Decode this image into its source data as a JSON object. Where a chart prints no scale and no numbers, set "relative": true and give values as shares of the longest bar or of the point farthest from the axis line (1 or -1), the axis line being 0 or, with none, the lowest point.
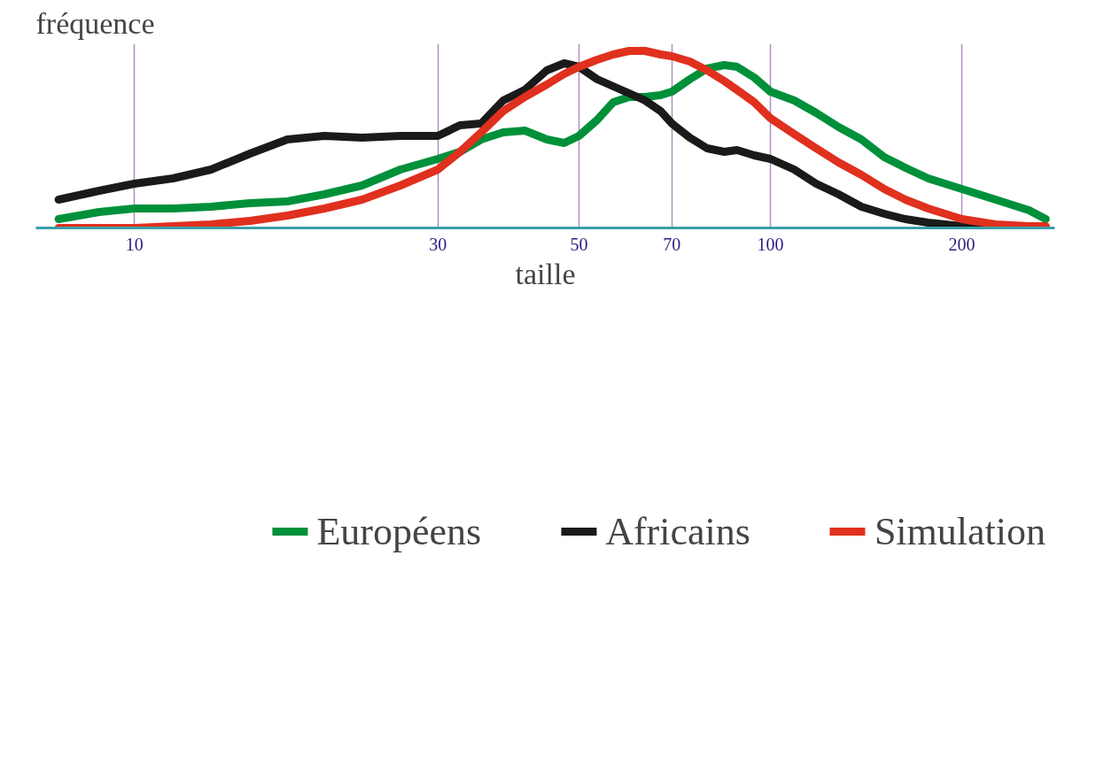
{
  "chart_data": {
    "type": "line",
    "relative": true,
    "xlabel": "taille",
    "ylabel": "fréquence",
    "log": "x",
    "grid": "x",
    "legend": "bottom",
    "marker": "none",
    "line_style": "solid",
    "x": [
      7.6,
      8.8,
      10,
      11.5,
      13.2,
      15.2,
      17.4,
      19.9,
      22.8,
      26.2,
      30,
      32.5,
      35.1,
      38,
      41.1,
      44.5,
      47.4,
      50,
      53.4,
      56.6,
      60,
      63.5,
      67.2,
      70,
      74.7,
      79.5,
      84.6,
      88.6,
      94.3,
      100,
      109,
      118,
      128,
      139,
      151,
      163,
      177,
      200,
      226,
      255,
      271
    ],
    "xlim": [
      7,
      280
    ],
    "xticks": [
      10,
      30,
      50,
      70,
      100,
      200
    ],
    "series": [
      {
        "name": "Européens",
        "color": "#00903a",
        "values": [
          0.05,
          0.09,
          0.11,
          0.11,
          0.12,
          0.14,
          0.15,
          0.19,
          0.24,
          0.33,
          0.39,
          0.43,
          0.5,
          0.54,
          0.55,
          0.5,
          0.48,
          0.52,
          0.61,
          0.71,
          0.74,
          0.74,
          0.75,
          0.77,
          0.84,
          0.9,
          0.92,
          0.91,
          0.85,
          0.77,
          0.72,
          0.65,
          0.57,
          0.5,
          0.4,
          0.34,
          0.28,
          0.22,
          0.16,
          0.1,
          0.05
        ]
      },
      {
        "name": "Africains",
        "color": "#1a1a1a",
        "values": [
          0.16,
          0.21,
          0.25,
          0.28,
          0.33,
          0.42,
          0.5,
          0.52,
          0.51,
          0.52,
          0.52,
          0.58,
          0.59,
          0.72,
          0.78,
          0.89,
          0.93,
          0.91,
          0.84,
          0.8,
          0.76,
          0.72,
          0.66,
          0.59,
          0.51,
          0.45,
          0.43,
          0.44,
          0.41,
          0.39,
          0.33,
          0.25,
          0.19,
          0.12,
          0.08,
          0.05,
          0.03,
          0.01,
          0,
          0,
          0
        ]
      },
      {
        "name": "Simulation",
        "color": "#e0301e",
        "values": [
          0,
          0,
          0,
          0.01,
          0.02,
          0.04,
          0.07,
          0.11,
          0.16,
          0.24,
          0.33,
          0.43,
          0.54,
          0.66,
          0.74,
          0.81,
          0.87,
          0.91,
          0.95,
          0.98,
          1,
          1,
          0.98,
          0.97,
          0.94,
          0.89,
          0.83,
          0.78,
          0.71,
          0.62,
          0.53,
          0.45,
          0.37,
          0.3,
          0.22,
          0.16,
          0.11,
          0.05,
          0.02,
          0.01,
          0.01
        ]
      }
    ]
  }
}
